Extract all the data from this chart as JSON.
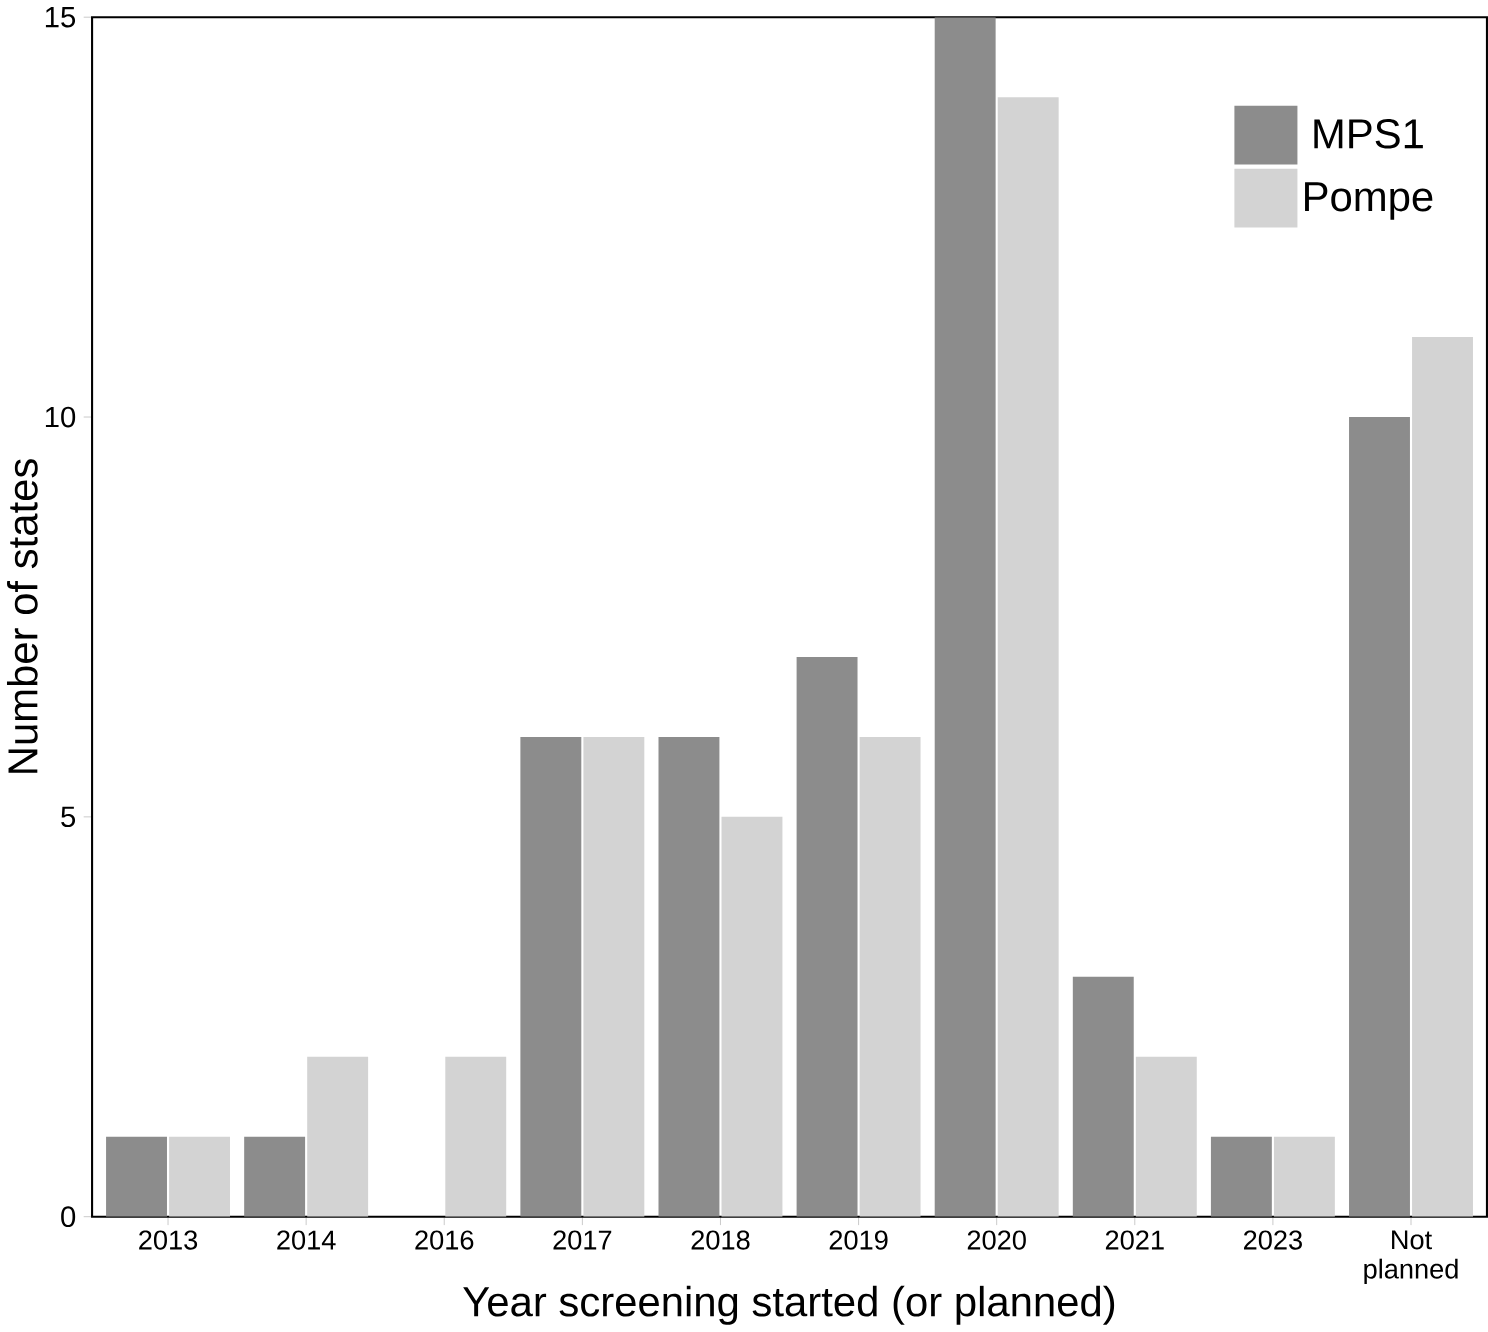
{
  "chart_data": {
    "type": "bar",
    "xlabel": "Year screening started (or planned)",
    "ylabel": "Number of states",
    "categories": [
      "2013",
      "2014",
      "2016",
      "2017",
      "2018",
      "2019",
      "2020",
      "2021",
      "2023",
      "Not planned"
    ],
    "series": [
      {
        "name": "MPS1",
        "color": "#8c8c8c",
        "values": [
          1,
          1,
          0,
          6,
          6,
          7,
          15,
          3,
          1,
          10
        ]
      },
      {
        "name": "Pompe",
        "color": "#d3d3d3",
        "values": [
          1,
          2,
          2,
          6,
          5,
          6,
          14,
          2,
          1,
          11
        ]
      }
    ],
    "ylim": [
      0,
      15
    ],
    "yticks": [
      0,
      5,
      10,
      15
    ],
    "legend": "top right",
    "grid": false
  }
}
